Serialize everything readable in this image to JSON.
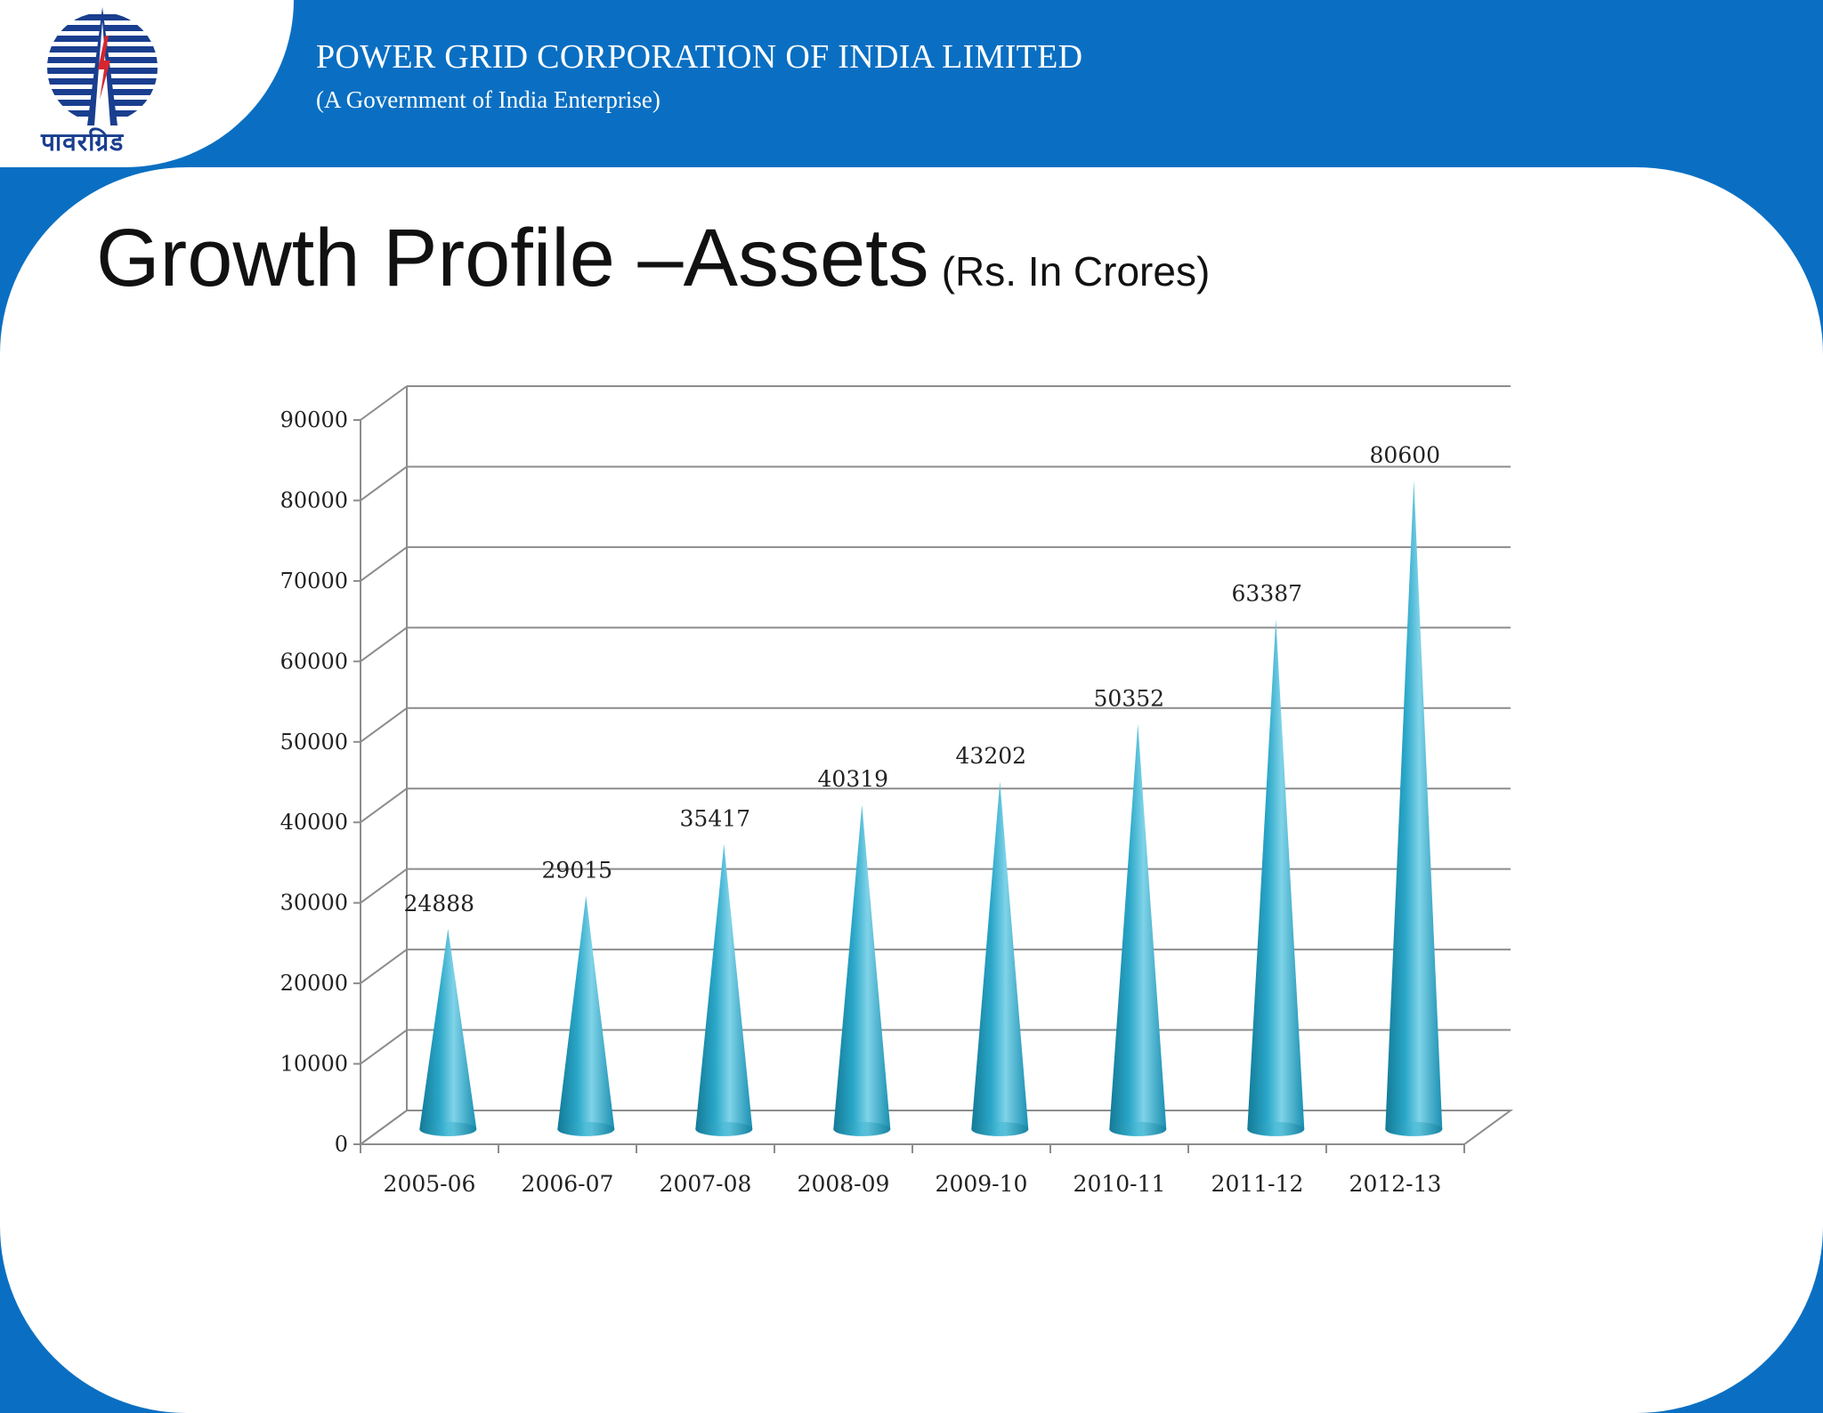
{
  "header": {
    "logo_text": "पावरग्रिड",
    "company_name": "POWER GRID CORPORATION OF INDIA LIMITED",
    "company_subtitle": "(A Government of India Enterprise)"
  },
  "slide": {
    "title": "Growth Profile –Assets",
    "title_unit": "(Rs. In Crores)"
  },
  "colors": {
    "brand_blue": "#0a6fc2",
    "cone_main": "#2aa7c9",
    "cone_light": "#7fd3e8",
    "cone_dark": "#137a96",
    "gridline": "#8c8c8c"
  },
  "chart_data": {
    "type": "bar",
    "style": "3d-cone",
    "title": "",
    "xlabel": "",
    "ylabel": "",
    "categories": [
      "2005-06",
      "2006-07",
      "2007-08",
      "2008-09",
      "2009-10",
      "2010-11",
      "2011-12",
      "2012-13"
    ],
    "values": [
      24888,
      29015,
      35417,
      40319,
      43202,
      50352,
      63387,
      80600
    ],
    "data_labels": [
      "24888",
      "29015",
      "35417",
      "40319",
      "43202",
      "50352",
      "63387",
      "80600"
    ],
    "ylim": [
      0,
      90000
    ],
    "yticks": [
      0,
      10000,
      20000,
      30000,
      40000,
      50000,
      60000,
      70000,
      80000,
      90000
    ],
    "grid": true,
    "legend": "none"
  }
}
